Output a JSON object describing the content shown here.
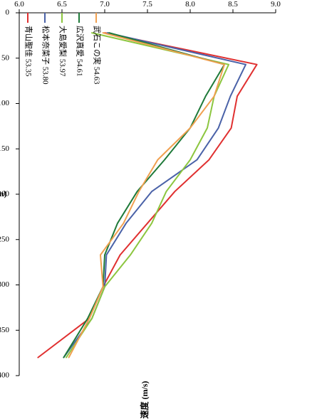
{
  "chart_data": {
    "type": "line",
    "xlabel": "距離 (m)",
    "ylabel": "走速度 (m/s)",
    "xlim": [
      0,
      400
    ],
    "ylim": [
      6.0,
      9.0
    ],
    "x_ticks": [
      "0",
      "50",
      "100",
      "150",
      "200",
      "250",
      "300",
      "350",
      "400"
    ],
    "y_ticks": [
      "6.0",
      "6.5",
      "7.0",
      "7.5",
      "8.0",
      "8.5",
      "9.0"
    ],
    "grid": false,
    "legend_position": "top-left",
    "series": [
      {
        "name": "青山聖佳 53.35",
        "color": "#e03030",
        "x": [
          22,
          57,
          92,
          127,
          162,
          197,
          232,
          267,
          302,
          337,
          380
        ],
        "y": [
          7.0,
          8.78,
          8.55,
          8.48,
          8.22,
          7.82,
          7.5,
          7.18,
          6.98,
          6.82,
          6.22
        ]
      },
      {
        "name": "松本奈菜子 53.80",
        "color": "#4a62a8",
        "x": [
          22,
          57,
          92,
          127,
          162,
          197,
          232,
          267,
          302,
          337,
          380
        ],
        "y": [
          7.03,
          8.65,
          8.47,
          8.33,
          8.08,
          7.55,
          7.25,
          7.02,
          7.0,
          6.85,
          6.52
        ]
      },
      {
        "name": "大島愛梨 53.97",
        "color": "#8cc63f",
        "x": [
          22,
          57,
          92,
          127,
          162,
          197,
          232,
          267,
          302,
          337,
          380
        ],
        "y": [
          6.85,
          8.45,
          8.28,
          8.2,
          8.0,
          7.72,
          7.55,
          7.3,
          7.0,
          6.85,
          6.55
        ]
      },
      {
        "name": "広沢真愛 54.61",
        "color": "#1f7a3a",
        "x": [
          22,
          57,
          92,
          127,
          162,
          197,
          232,
          267,
          302,
          337,
          380
        ],
        "y": [
          7.05,
          8.4,
          8.18,
          8.0,
          7.7,
          7.38,
          7.15,
          7.0,
          6.98,
          6.8,
          6.52
        ]
      },
      {
        "name": "武石この実 54.63",
        "color": "#f0a050",
        "x": [
          22,
          57,
          92,
          127,
          162,
          197,
          232,
          267,
          302,
          337,
          380
        ],
        "y": [
          6.98,
          8.4,
          8.28,
          8.0,
          7.62,
          7.4,
          7.22,
          6.95,
          6.98,
          6.82,
          6.58
        ]
      }
    ]
  }
}
